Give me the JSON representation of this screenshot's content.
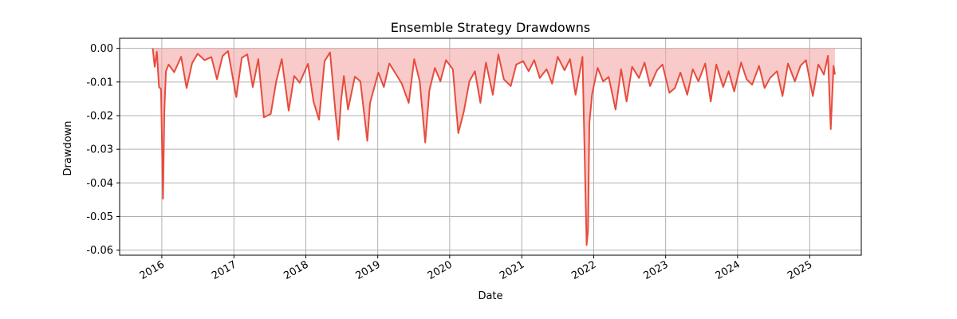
{
  "chart_data": {
    "type": "area",
    "title": "Ensemble Strategy Drawdowns",
    "xlabel": "Date",
    "ylabel": "Drawdown",
    "grid": true,
    "colors": {
      "line": "#e74c3c",
      "fill": "#f4a6a6"
    },
    "x_range": [
      "2015-06-01",
      "2025-09-20"
    ],
    "ylim": [
      -0.0615,
      0.003
    ],
    "x_ticks": [
      "2016",
      "2017",
      "2018",
      "2019",
      "2020",
      "2021",
      "2022",
      "2023",
      "2024",
      "2025"
    ],
    "y_ticks": [
      "0.00",
      "-0.01",
      "-0.02",
      "-0.03",
      "-0.04",
      "-0.05",
      "-0.06"
    ],
    "series": [
      {
        "x": [
          "2015-11-16",
          "2015-11-26",
          "2015-12-07",
          "2015-12-18",
          "2015-12-28",
          "2016-01-07",
          "2016-01-14",
          "2016-01-22",
          "2016-02-05",
          "2016-03-04",
          "2016-04-08",
          "2016-05-06",
          "2016-06-03",
          "2016-07-01",
          "2016-08-05",
          "2016-09-09",
          "2016-10-07",
          "2016-11-04",
          "2016-12-02",
          "2017-01-13",
          "2017-02-10",
          "2017-03-10",
          "2017-04-07",
          "2017-05-05",
          "2017-06-02",
          "2017-07-07",
          "2017-08-04",
          "2017-09-01",
          "2017-10-06",
          "2017-11-03",
          "2017-12-01",
          "2018-01-12",
          "2018-02-09",
          "2018-03-09",
          "2018-04-06",
          "2018-05-04",
          "2018-06-01",
          "2018-06-15",
          "2018-06-29",
          "2018-07-13",
          "2018-08-03",
          "2018-09-07",
          "2018-10-05",
          "2018-11-09",
          "2018-11-23",
          "2019-01-04",
          "2019-02-01",
          "2019-03-01",
          "2019-04-05",
          "2019-05-03",
          "2019-06-07",
          "2019-07-05",
          "2019-08-02",
          "2019-08-30",
          "2019-09-20",
          "2019-10-18",
          "2019-11-15",
          "2019-12-13",
          "2020-01-17",
          "2020-02-14",
          "2020-03-13",
          "2020-04-10",
          "2020-05-08",
          "2020-06-05",
          "2020-07-03",
          "2020-08-07",
          "2020-09-04",
          "2020-10-02",
          "2020-11-06",
          "2020-12-04",
          "2021-01-08",
          "2021-02-05",
          "2021-03-05",
          "2021-04-02",
          "2021-05-07",
          "2021-06-04",
          "2021-07-02",
          "2021-08-06",
          "2021-09-03",
          "2021-10-01",
          "2021-11-05",
          "2021-11-26",
          "2021-12-03",
          "2021-12-10",
          "2021-12-24",
          "2022-01-21",
          "2022-02-18",
          "2022-03-18",
          "2022-04-22",
          "2022-05-20",
          "2022-06-17",
          "2022-07-15",
          "2022-08-19",
          "2022-09-16",
          "2022-10-14",
          "2022-11-18",
          "2022-12-16",
          "2023-01-20",
          "2023-02-17",
          "2023-03-17",
          "2023-04-21",
          "2023-05-19",
          "2023-06-16",
          "2023-07-21",
          "2023-08-18",
          "2023-09-15",
          "2023-10-20",
          "2023-11-17",
          "2023-12-15",
          "2024-01-19",
          "2024-02-16",
          "2024-03-15",
          "2024-04-19",
          "2024-05-17",
          "2024-06-14",
          "2024-07-19",
          "2024-08-16",
          "2024-09-13",
          "2024-10-18",
          "2024-11-15",
          "2024-12-13",
          "2025-01-17",
          "2025-02-14",
          "2025-03-14",
          "2025-04-04",
          "2025-04-18",
          "2025-05-02",
          "2025-05-09"
        ],
        "values": [
          0.0,
          -0.0055,
          -0.001,
          -0.0115,
          -0.0121,
          -0.0447,
          -0.0185,
          -0.0068,
          -0.0048,
          -0.0071,
          -0.0025,
          -0.0118,
          -0.0044,
          -0.0016,
          -0.0035,
          -0.0026,
          -0.0092,
          -0.0023,
          -0.0008,
          -0.0145,
          -0.0028,
          -0.0018,
          -0.0115,
          -0.0032,
          -0.0205,
          -0.0195,
          -0.0098,
          -0.0032,
          -0.0185,
          -0.0082,
          -0.0102,
          -0.0046,
          -0.0158,
          -0.0212,
          -0.0038,
          -0.0012,
          -0.0195,
          -0.0272,
          -0.0155,
          -0.0082,
          -0.0182,
          -0.0084,
          -0.0098,
          -0.0275,
          -0.0162,
          -0.0072,
          -0.0115,
          -0.0045,
          -0.0078,
          -0.0105,
          -0.0162,
          -0.0032,
          -0.0098,
          -0.028,
          -0.0125,
          -0.0058,
          -0.0098,
          -0.0035,
          -0.0062,
          -0.0252,
          -0.0188,
          -0.0098,
          -0.0068,
          -0.0162,
          -0.0042,
          -0.0138,
          -0.0018,
          -0.0092,
          -0.0112,
          -0.0048,
          -0.0038,
          -0.0068,
          -0.0035,
          -0.0088,
          -0.0062,
          -0.0105,
          -0.0025,
          -0.0065,
          -0.0032,
          -0.0138,
          -0.0025,
          -0.0585,
          -0.054,
          -0.0222,
          -0.0135,
          -0.0058,
          -0.0098,
          -0.0085,
          -0.0182,
          -0.0062,
          -0.0158,
          -0.0055,
          -0.0088,
          -0.0042,
          -0.0112,
          -0.0065,
          -0.0048,
          -0.0132,
          -0.0118,
          -0.0072,
          -0.0138,
          -0.0062,
          -0.0098,
          -0.0045,
          -0.0158,
          -0.0048,
          -0.0115,
          -0.0068,
          -0.0128,
          -0.0042,
          -0.0092,
          -0.0108,
          -0.0052,
          -0.0118,
          -0.0088,
          -0.0068,
          -0.0142,
          -0.0045,
          -0.0098,
          -0.0052,
          -0.0035,
          -0.0142,
          -0.0048,
          -0.0078,
          -0.0022,
          -0.024,
          -0.0052,
          -0.0078
        ]
      }
    ]
  }
}
